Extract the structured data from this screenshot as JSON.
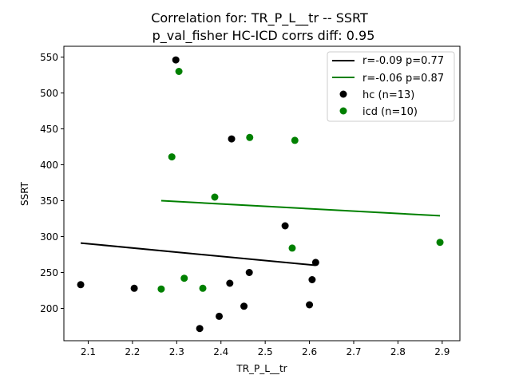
{
  "chart_data": {
    "type": "scatter",
    "title_line1": "Correlation for: TR_P_L__tr -- SSRT",
    "title_line2": "p_val_fisher HC-ICD corrs diff: 0.95",
    "xlabel": "TR_P_L__tr",
    "ylabel": "SSRT",
    "xlim": [
      2.045,
      2.94
    ],
    "ylim": [
      155,
      565
    ],
    "xticks": [
      2.1,
      2.2,
      2.3,
      2.4,
      2.5,
      2.6,
      2.7,
      2.8,
      2.9
    ],
    "xtick_labels": [
      "2.1",
      "2.2",
      "2.3",
      "2.4",
      "2.5",
      "2.6",
      "2.7",
      "2.8",
      "2.9"
    ],
    "yticks": [
      200,
      250,
      300,
      350,
      400,
      450,
      500,
      550
    ],
    "ytick_labels": [
      "200",
      "250",
      "300",
      "350",
      "400",
      "450",
      "500",
      "550"
    ],
    "legend_position": "top-right",
    "series": [
      {
        "name": "hc (n=13)",
        "color": "#000000",
        "points": [
          {
            "x": 2.083,
            "y": 233
          },
          {
            "x": 2.204,
            "y": 228
          },
          {
            "x": 2.298,
            "y": 546
          },
          {
            "x": 2.352,
            "y": 172
          },
          {
            "x": 2.396,
            "y": 189
          },
          {
            "x": 2.42,
            "y": 235
          },
          {
            "x": 2.424,
            "y": 436
          },
          {
            "x": 2.452,
            "y": 203
          },
          {
            "x": 2.464,
            "y": 250
          },
          {
            "x": 2.545,
            "y": 315
          },
          {
            "x": 2.6,
            "y": 205
          },
          {
            "x": 2.606,
            "y": 240
          },
          {
            "x": 2.614,
            "y": 264
          }
        ],
        "fit": {
          "label": "r=-0.09 p=0.77",
          "x": [
            2.083,
            2.614
          ],
          "y": [
            291,
            260
          ]
        }
      },
      {
        "name": "icd (n=10)",
        "color": "#008000",
        "points": [
          {
            "x": 2.265,
            "y": 227
          },
          {
            "x": 2.289,
            "y": 411
          },
          {
            "x": 2.305,
            "y": 530
          },
          {
            "x": 2.317,
            "y": 242
          },
          {
            "x": 2.359,
            "y": 228
          },
          {
            "x": 2.386,
            "y": 355
          },
          {
            "x": 2.465,
            "y": 438
          },
          {
            "x": 2.561,
            "y": 284
          },
          {
            "x": 2.567,
            "y": 434
          },
          {
            "x": 2.895,
            "y": 292
          }
        ],
        "fit": {
          "label": "r=-0.06 p=0.87",
          "x": [
            2.265,
            2.895
          ],
          "y": [
            350,
            329
          ]
        }
      }
    ]
  }
}
